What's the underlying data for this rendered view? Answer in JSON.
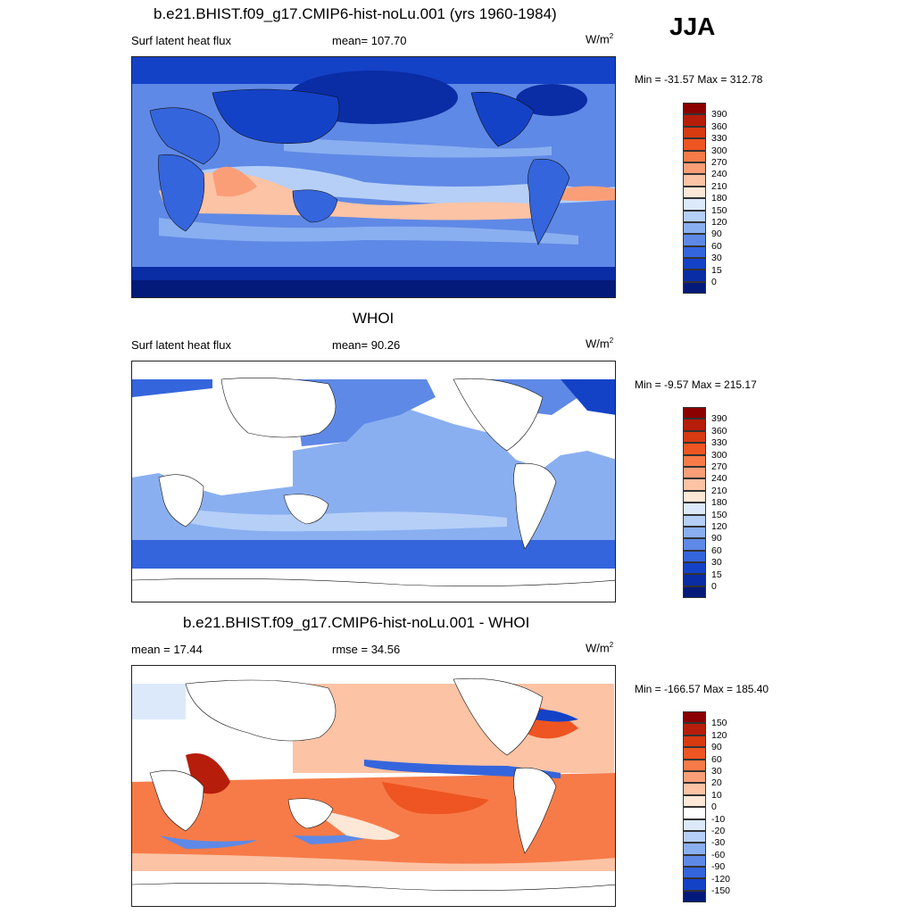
{
  "season": "JJA",
  "panels": [
    {
      "title": "b.e21.BHIST.f09_g17.CMIP6-hist-noLu.001 (yrs 1960-1984)",
      "left_label": "Surf latent heat flux",
      "center_label": "mean= 107.70",
      "units": "W/m",
      "units_sup": "2",
      "minmax": "Min = -31.57 Max = 312.78",
      "colorbar": {
        "labels": [
          "390",
          "360",
          "330",
          "300",
          "270",
          "240",
          "210",
          "180",
          "150",
          "120",
          "90",
          "60",
          "30",
          "15",
          "0"
        ],
        "colors": [
          "#8b0000",
          "#b61d0a",
          "#d83a12",
          "#ee5522",
          "#f77b48",
          "#fa9e78",
          "#fcc3a5",
          "#fde7d6",
          "#dbe9fb",
          "#b5cff7",
          "#8aaff0",
          "#5f89e6",
          "#3565dc",
          "#1442c7",
          "#0a2ca4",
          "#041a7a"
        ]
      },
      "mean_value": 107.7,
      "min_value": -31.57,
      "max_value": 312.78
    },
    {
      "title": "WHOI",
      "left_label": "Surf latent heat flux",
      "center_label": "mean=  90.26",
      "units": "W/m",
      "units_sup": "2",
      "minmax": "Min =  -9.57 Max = 215.17",
      "colorbar": {
        "labels": [
          "390",
          "360",
          "330",
          "300",
          "270",
          "240",
          "210",
          "180",
          "150",
          "120",
          "90",
          "60",
          "30",
          "15",
          "0"
        ],
        "colors": [
          "#8b0000",
          "#b61d0a",
          "#d83a12",
          "#ee5522",
          "#f77b48",
          "#fa9e78",
          "#fcc3a5",
          "#fde7d6",
          "#dbe9fb",
          "#b5cff7",
          "#8aaff0",
          "#5f89e6",
          "#3565dc",
          "#1442c7",
          "#0a2ca4",
          "#041a7a"
        ]
      },
      "mean_value": 90.26,
      "min_value": -9.57,
      "max_value": 215.17
    },
    {
      "title": "b.e21.BHIST.f09_g17.CMIP6-hist-noLu.001 - WHOI",
      "left_label": "mean =  17.44",
      "center_label": "rmse =  34.56",
      "units": "W/m",
      "units_sup": "2",
      "minmax": "Min = -166.57 Max = 185.40",
      "colorbar": {
        "labels": [
          "150",
          "120",
          "90",
          "60",
          "30",
          "20",
          "10",
          "0",
          "-10",
          "-20",
          "-30",
          "-60",
          "-90",
          "-120",
          "-150"
        ],
        "colors": [
          "#8b0000",
          "#b61d0a",
          "#d83a12",
          "#ee5522",
          "#f77b48",
          "#fa9e78",
          "#fcc3a5",
          "#fde7d6",
          "#ffffff",
          "#dbe9fb",
          "#b5cff7",
          "#8aaff0",
          "#5f89e6",
          "#3565dc",
          "#1442c7",
          "#041a7a"
        ]
      },
      "mean_value": 17.44,
      "rmse_value": 34.56,
      "min_value": -166.57,
      "max_value": 185.4
    }
  ]
}
